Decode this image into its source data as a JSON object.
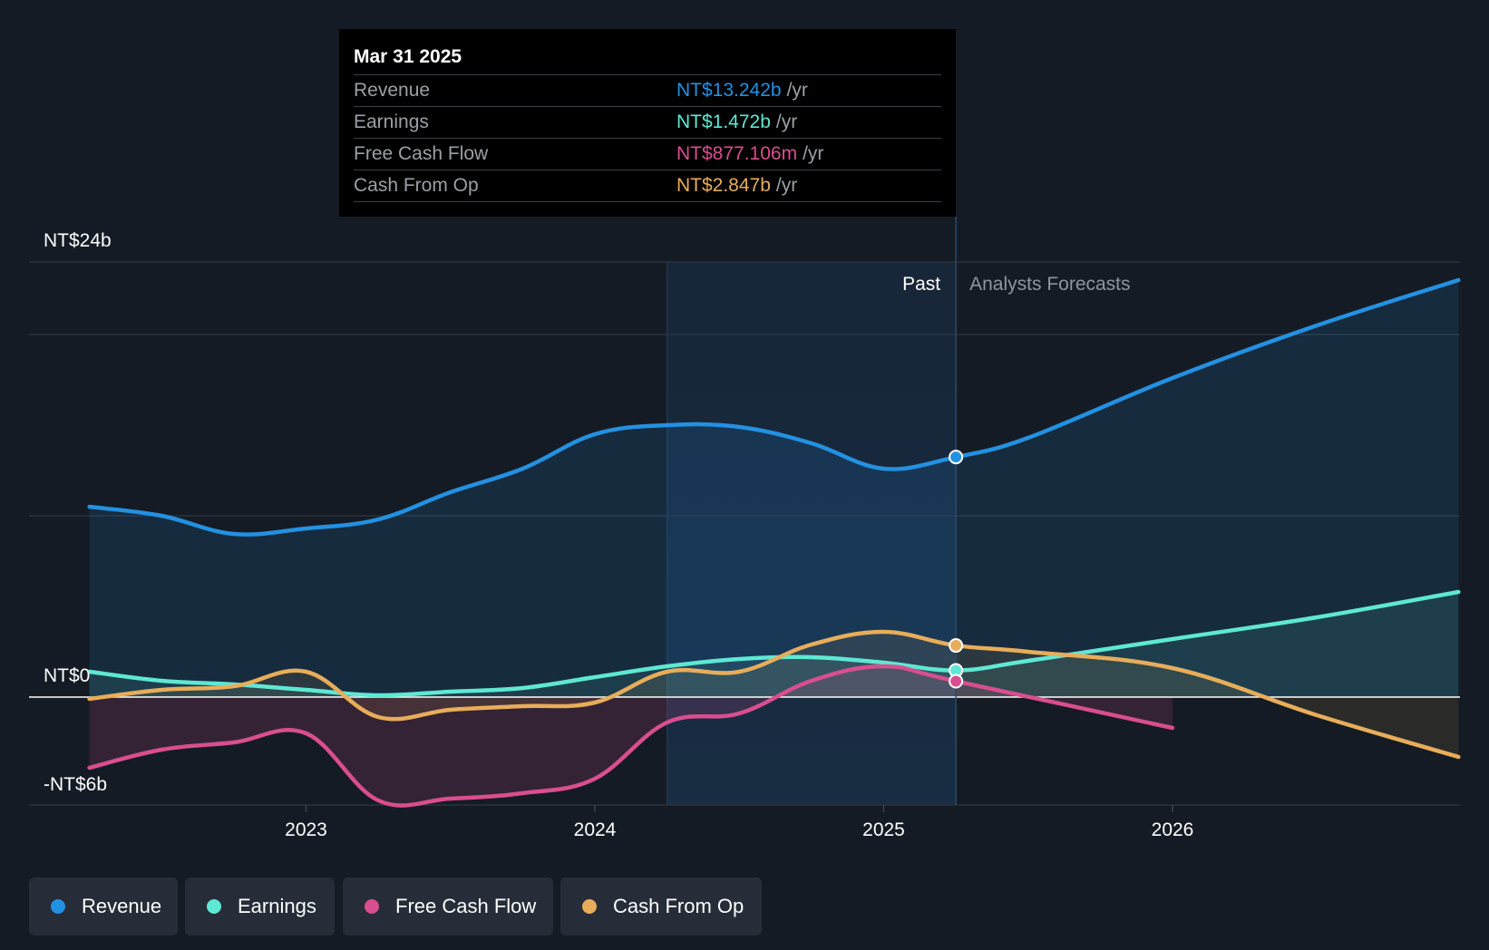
{
  "chart_data": {
    "type": "line",
    "title": "",
    "y_ticks": [
      {
        "label": "NT$24b",
        "value": 24
      },
      {
        "label": "NT$0",
        "value": 0
      },
      {
        "label": "-NT$6b",
        "value": -6
      }
    ],
    "ylim": [
      -6,
      24
    ],
    "x_ticks": [
      {
        "label": "2023",
        "value": 2023.0
      },
      {
        "label": "2024",
        "value": 2024.0
      },
      {
        "label": "2025",
        "value": 2025.0
      },
      {
        "label": "2026",
        "value": 2026.0
      }
    ],
    "xlim": [
      2022.0,
      2027.0
    ],
    "past_label": "Past",
    "forecast_label": "Analysts Forecasts",
    "highlight_start": 2024.25,
    "divider_x": 2025.25,
    "series": [
      {
        "name": "Revenue",
        "color": "#2391e2",
        "points": [
          [
            2022.25,
            10.5
          ],
          [
            2022.5,
            10.0
          ],
          [
            2022.75,
            9.0
          ],
          [
            2023.0,
            9.3
          ],
          [
            2023.25,
            9.8
          ],
          [
            2023.5,
            11.3
          ],
          [
            2023.75,
            12.6
          ],
          [
            2024.0,
            14.5
          ],
          [
            2024.25,
            15.0
          ],
          [
            2024.5,
            14.9
          ],
          [
            2024.75,
            14.0
          ],
          [
            2025.0,
            12.6
          ],
          [
            2025.25,
            13.242
          ]
        ],
        "forecast": [
          [
            2025.25,
            13.242
          ],
          [
            2025.5,
            14.3
          ],
          [
            2026.0,
            17.6
          ],
          [
            2026.5,
            20.5
          ],
          [
            2026.99,
            23.0
          ]
        ],
        "fill_to_axis": true
      },
      {
        "name": "Earnings",
        "color": "#5ee8d4",
        "points": [
          [
            2022.25,
            1.4
          ],
          [
            2022.5,
            0.9
          ],
          [
            2022.75,
            0.7
          ],
          [
            2023.0,
            0.4
          ],
          [
            2023.25,
            0.1
          ],
          [
            2023.5,
            0.3
          ],
          [
            2023.75,
            0.5
          ],
          [
            2024.0,
            1.1
          ],
          [
            2024.25,
            1.7
          ],
          [
            2024.5,
            2.1
          ],
          [
            2024.75,
            2.2
          ],
          [
            2025.0,
            1.9
          ],
          [
            2025.25,
            1.472
          ]
        ],
        "forecast": [
          [
            2025.25,
            1.472
          ],
          [
            2025.5,
            2.0
          ],
          [
            2026.0,
            3.2
          ],
          [
            2026.5,
            4.4
          ],
          [
            2026.99,
            5.8
          ]
        ],
        "fill_to_axis": true
      },
      {
        "name": "Free Cash Flow",
        "color": "#d94e8f",
        "points": [
          [
            2022.25,
            -3.9
          ],
          [
            2022.5,
            -2.9
          ],
          [
            2022.75,
            -2.5
          ],
          [
            2023.0,
            -2.0
          ],
          [
            2023.25,
            -5.7
          ],
          [
            2023.5,
            -5.6
          ],
          [
            2023.75,
            -5.3
          ],
          [
            2024.0,
            -4.5
          ],
          [
            2024.25,
            -1.4
          ],
          [
            2024.5,
            -0.9
          ],
          [
            2024.75,
            0.9
          ],
          [
            2025.0,
            1.7
          ],
          [
            2025.25,
            0.877
          ]
        ],
        "forecast": [
          [
            2025.25,
            0.877
          ],
          [
            2026.0,
            -1.7
          ]
        ],
        "fill_to_axis": true
      },
      {
        "name": "Cash From Op",
        "color": "#e8ad5a",
        "points": [
          [
            2022.25,
            -0.1
          ],
          [
            2022.5,
            0.4
          ],
          [
            2022.75,
            0.6
          ],
          [
            2023.0,
            1.4
          ],
          [
            2023.25,
            -1.1
          ],
          [
            2023.5,
            -0.7
          ],
          [
            2023.75,
            -0.5
          ],
          [
            2024.0,
            -0.3
          ],
          [
            2024.25,
            1.4
          ],
          [
            2024.5,
            1.4
          ],
          [
            2024.75,
            2.9
          ],
          [
            2025.0,
            3.6
          ],
          [
            2025.25,
            2.847
          ]
        ],
        "forecast": [
          [
            2025.25,
            2.847
          ],
          [
            2025.5,
            2.5
          ],
          [
            2026.0,
            1.6
          ],
          [
            2026.5,
            -1.0
          ],
          [
            2026.99,
            -3.3
          ]
        ],
        "fill_to_axis": true
      }
    ]
  },
  "tooltip": {
    "date": "Mar 31 2025",
    "rows": [
      {
        "label": "Revenue",
        "value": "NT$13.242b",
        "unit": "/yr",
        "color": "#2391e2"
      },
      {
        "label": "Earnings",
        "value": "NT$1.472b",
        "unit": "/yr",
        "color": "#5ee8d4"
      },
      {
        "label": "Free Cash Flow",
        "value": "NT$877.106m",
        "unit": "/yr",
        "color": "#d94e8f"
      },
      {
        "label": "Cash From Op",
        "value": "NT$2.847b",
        "unit": "/yr",
        "color": "#e8ad5a"
      }
    ]
  },
  "legend": [
    {
      "label": "Revenue",
      "color": "#2391e2"
    },
    {
      "label": "Earnings",
      "color": "#5ee8d4"
    },
    {
      "label": "Free Cash Flow",
      "color": "#d94e8f"
    },
    {
      "label": "Cash From Op",
      "color": "#e8ad5a"
    }
  ]
}
